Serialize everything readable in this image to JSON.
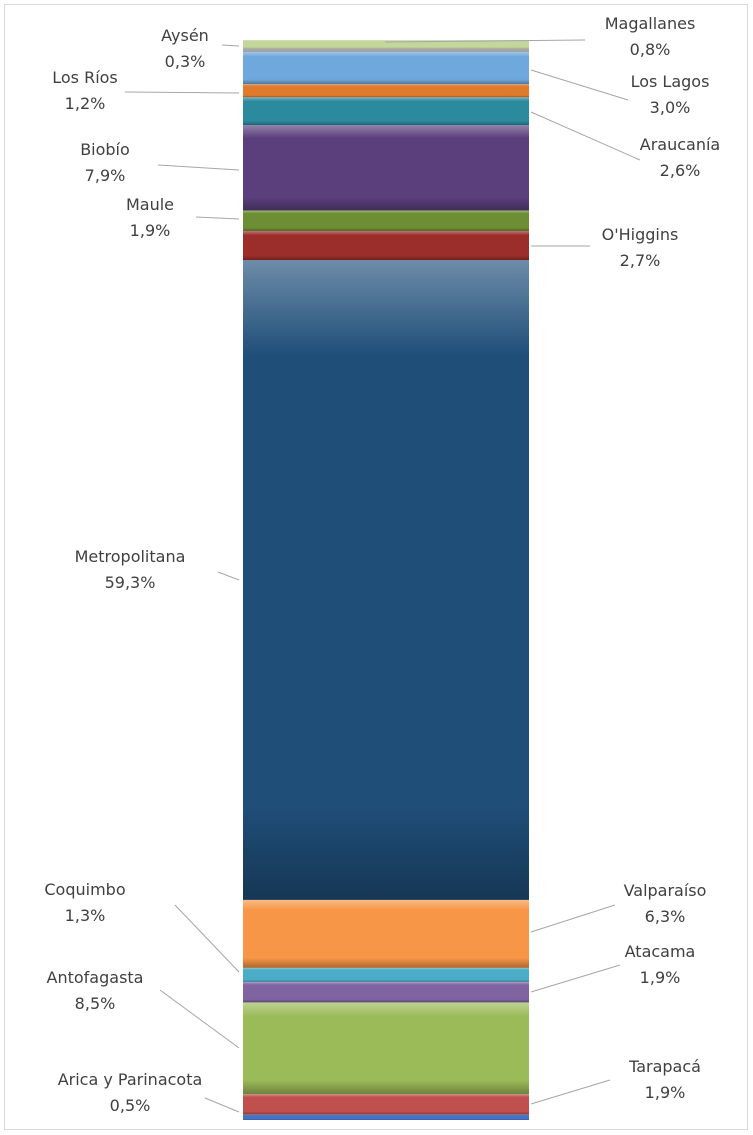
{
  "chart_data": {
    "type": "bar",
    "stacked": true,
    "orientation": "vertical",
    "legend": "none",
    "grid": false,
    "segments": [
      {
        "name": "Arica y Parinacota",
        "label": "Arica y Parinacota",
        "value_label": "0,5%",
        "value": 0.5,
        "color": "#4472C4",
        "side": "left"
      },
      {
        "name": "Tarapacá",
        "label": "Tarapacá",
        "value_label": "1,9%",
        "value": 1.9,
        "color": "#C0504D",
        "side": "right"
      },
      {
        "name": "Antofagasta",
        "label": "Antofagasta",
        "value_label": "8,5%",
        "value": 8.5,
        "color": "#9BBB59",
        "side": "left"
      },
      {
        "name": "Atacama",
        "label": "Atacama",
        "value_label": "1,9%",
        "value": 1.9,
        "color": "#8064A2",
        "side": "right"
      },
      {
        "name": "Coquimbo",
        "label": "Coquimbo",
        "value_label": "1,3%",
        "value": 1.3,
        "color": "#4BACC6",
        "side": "left"
      },
      {
        "name": "Valparaíso",
        "label": "Valparaíso",
        "value_label": "6,3%",
        "value": 6.3,
        "color": "#F79646",
        "side": "right"
      },
      {
        "name": "Metropolitana",
        "label": "Metropolitana",
        "value_label": "59,3%",
        "value": 59.3,
        "color": "#1F4E79",
        "side": "left"
      },
      {
        "name": "O'Higgins",
        "label": "O'Higgins",
        "value_label": "2,7%",
        "value": 2.7,
        "color": "#9B2D2A",
        "side": "right"
      },
      {
        "name": "Maule",
        "label": "Maule",
        "value_label": "1,9%",
        "value": 1.9,
        "color": "#6E8E35",
        "side": "left"
      },
      {
        "name": "Biobío",
        "label": "Biobío",
        "value_label": "7,9%",
        "value": 7.9,
        "color": "#5B3F7C",
        "side": "left"
      },
      {
        "name": "Araucanía",
        "label": "Araucanía",
        "value_label": "2,6%",
        "value": 2.6,
        "color": "#2C8A9E",
        "side": "right"
      },
      {
        "name": "Los Ríos",
        "label": "Los Ríos",
        "value_label": "1,2%",
        "value": 1.2,
        "color": "#E07B2C",
        "side": "left"
      },
      {
        "name": "Los Lagos",
        "label": "Los Lagos",
        "value_label": "3,0%",
        "value": 3.0,
        "color": "#6FA8DC",
        "side": "right"
      },
      {
        "name": "Aysén",
        "label": "Aysén",
        "value_label": "0,3%",
        "value": 0.3,
        "color": "#A5A5A5",
        "side": "left"
      },
      {
        "name": "Magallanes",
        "label": "Magallanes",
        "value_label": "0,8%",
        "value": 0.8,
        "color": "#C3D69B",
        "side": "right"
      }
    ]
  }
}
